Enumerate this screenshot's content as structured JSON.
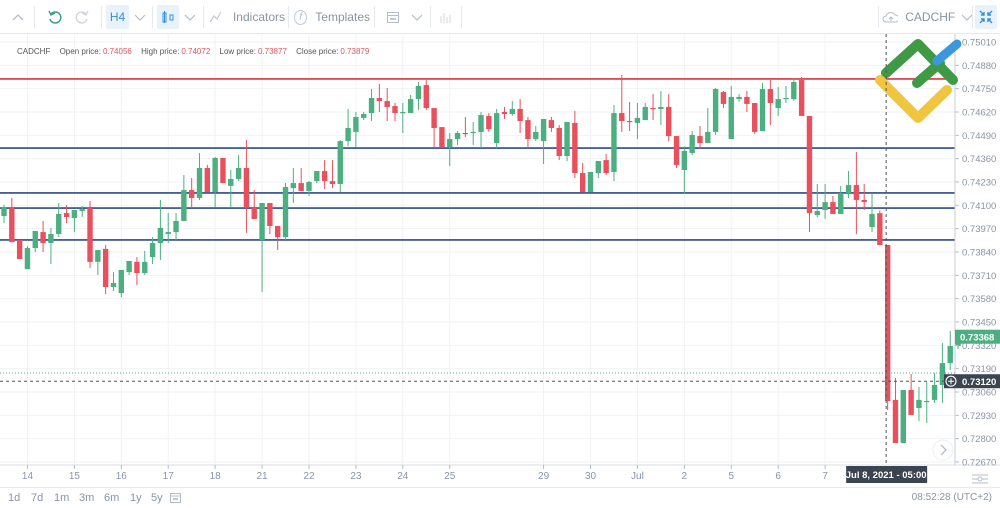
{
  "toolbar": {
    "timeframe": "H4",
    "indicators_label": "Indicators",
    "templates_label": "Templates",
    "symbol": "CADCHF"
  },
  "legend": {
    "symbol": "CADCHF",
    "open_label": "Open price:",
    "open": "0.74056",
    "high_label": "High price:",
    "high": "0.74072",
    "low_label": "Low price:",
    "low": "0.73877",
    "close_label": "Close price:",
    "close": "0.73879"
  },
  "crosshair": {
    "time_label": "Jul 8, 2021 - 05:00",
    "price_label": "0.73120",
    "price": 0.7312,
    "candle_index": 112
  },
  "last_price": {
    "label": "0.73368",
    "price": 0.73368
  },
  "bottom": {
    "ranges": [
      "1d",
      "7d",
      "1m",
      "3m",
      "6m",
      "1y",
      "5y"
    ],
    "clock": "08:52:28 (UTC+2)"
  },
  "colors": {
    "up": "#4caf82",
    "down": "#e8505d",
    "resistance": "#d9343f",
    "support": "#2c4a8c",
    "accent": "#3a8ed8"
  },
  "chart_data": {
    "type": "candlestick",
    "symbol": "CADCHF",
    "timeframe": "H4",
    "ylim": [
      0.7261,
      0.751
    ],
    "y_ticks": [
      "0.75010",
      "0.74880",
      "0.74750",
      "0.74620",
      "0.74490",
      "0.74360",
      "0.74230",
      "0.74100",
      "0.73970",
      "0.73840",
      "0.73710",
      "0.73580",
      "0.73450",
      "0.73320",
      "0.73190",
      "0.73060",
      "0.72930",
      "0.72800",
      "0.72670"
    ],
    "x_ticks": [
      {
        "label": "14",
        "index": 3
      },
      {
        "label": "15",
        "index": 9
      },
      {
        "label": "16",
        "index": 15
      },
      {
        "label": "17",
        "index": 21
      },
      {
        "label": "18",
        "index": 27
      },
      {
        "label": "21",
        "index": 33
      },
      {
        "label": "22",
        "index": 39
      },
      {
        "label": "23",
        "index": 45
      },
      {
        "label": "24",
        "index": 51
      },
      {
        "label": "25",
        "index": 57
      },
      {
        "label": "29",
        "index": 69
      },
      {
        "label": "30",
        "index": 75
      },
      {
        "label": "Jul",
        "index": 81
      },
      {
        "label": "2",
        "index": 87
      },
      {
        "label": "5",
        "index": 93
      },
      {
        "label": "6",
        "index": 99
      },
      {
        "label": "7",
        "index": 105
      }
    ],
    "horizontal_lines": [
      {
        "price": 0.74804,
        "kind": "resistance"
      },
      {
        "price": 0.74419,
        "kind": "support"
      },
      {
        "price": 0.74169,
        "kind": "support"
      },
      {
        "price": 0.74085,
        "kind": "support"
      },
      {
        "price": 0.73907,
        "kind": "support"
      }
    ],
    "dotted_price_line": 0.73166,
    "ohlc": [
      [
        0.7404,
        0.74102,
        0.74001,
        0.74091
      ],
      [
        0.74091,
        0.74141,
        0.73895,
        0.73895
      ],
      [
        0.73907,
        0.73907,
        0.73801,
        0.73801
      ],
      [
        0.73745,
        0.73873,
        0.73745,
        0.73862
      ],
      [
        0.73862,
        0.73957,
        0.7384,
        0.73957
      ],
      [
        0.73951,
        0.74013,
        0.7384,
        0.7389
      ],
      [
        0.7389,
        0.73974,
        0.73773,
        0.7394
      ],
      [
        0.7394,
        0.74113,
        0.73923,
        0.74052
      ],
      [
        0.74057,
        0.74102,
        0.74001,
        0.74035
      ],
      [
        0.74029,
        0.74074,
        0.73951,
        0.74074
      ],
      [
        0.74068,
        0.74096,
        0.74035,
        0.74079
      ],
      [
        0.74085,
        0.74124,
        0.73751,
        0.73785
      ],
      [
        0.73785,
        0.73851,
        0.73712,
        0.73851
      ],
      [
        0.73857,
        0.73879,
        0.73606,
        0.73645
      ],
      [
        0.73645,
        0.73728,
        0.73623,
        0.73667
      ],
      [
        0.73611,
        0.7374,
        0.73589,
        0.7374
      ],
      [
        0.73728,
        0.7379,
        0.73712,
        0.7379
      ],
      [
        0.73785,
        0.73812,
        0.73656,
        0.73723
      ],
      [
        0.73723,
        0.73846,
        0.73712,
        0.73785
      ],
      [
        0.73812,
        0.73923,
        0.73773,
        0.7389
      ],
      [
        0.7389,
        0.7413,
        0.73796,
        0.73974
      ],
      [
        0.7394,
        0.74057,
        0.7389,
        0.73951
      ],
      [
        0.73951,
        0.74057,
        0.73907,
        0.74013
      ],
      [
        0.74013,
        0.74269,
        0.74013,
        0.74185
      ],
      [
        0.74185,
        0.74252,
        0.74091,
        0.74141
      ],
      [
        0.74141,
        0.74391,
        0.7413,
        0.74308
      ],
      [
        0.74308,
        0.74325,
        0.74174,
        0.74174
      ],
      [
        0.74174,
        0.74369,
        0.74091,
        0.74364
      ],
      [
        0.74364,
        0.74364,
        0.74224,
        0.74224
      ],
      [
        0.74208,
        0.74297,
        0.74091,
        0.74247
      ],
      [
        0.74247,
        0.7438,
        0.74235,
        0.74308
      ],
      [
        0.74308,
        0.74464,
        0.73946,
        0.74091
      ],
      [
        0.74085,
        0.74185,
        0.74024,
        0.74024
      ],
      [
        0.73907,
        0.74113,
        0.73617,
        0.74113
      ],
      [
        0.74113,
        0.74113,
        0.7394,
        0.73985
      ],
      [
        0.73985,
        0.73985,
        0.73851,
        0.73923
      ],
      [
        0.73923,
        0.74224,
        0.73907,
        0.74202
      ],
      [
        0.74196,
        0.74308,
        0.74113,
        0.74224
      ],
      [
        0.74224,
        0.74308,
        0.7418,
        0.7418
      ],
      [
        0.7418,
        0.74235,
        0.74152,
        0.7423
      ],
      [
        0.74235,
        0.74291,
        0.74224,
        0.74291
      ],
      [
        0.74291,
        0.74352,
        0.74191,
        0.74235
      ],
      [
        0.74235,
        0.74352,
        0.74196,
        0.74219
      ],
      [
        0.74219,
        0.74464,
        0.74174,
        0.74458
      ],
      [
        0.74458,
        0.74637,
        0.74429,
        0.74531
      ],
      [
        0.74509,
        0.7462,
        0.74425,
        0.74592
      ],
      [
        0.74587,
        0.7462,
        0.74575,
        0.74609
      ],
      [
        0.74614,
        0.74748,
        0.7457,
        0.74698
      ],
      [
        0.74698,
        0.74776,
        0.7462,
        0.74681
      ],
      [
        0.74681,
        0.74754,
        0.7457,
        0.74648
      ],
      [
        0.74653,
        0.7467,
        0.7457,
        0.74614
      ],
      [
        0.74614,
        0.7467,
        0.74503,
        0.7462
      ],
      [
        0.74614,
        0.74715,
        0.74614,
        0.74692
      ],
      [
        0.74692,
        0.74787,
        0.74631,
        0.74765
      ],
      [
        0.7477,
        0.74798,
        0.74631,
        0.74642
      ],
      [
        0.74642,
        0.74642,
        0.74425,
        0.74531
      ],
      [
        0.74536,
        0.74536,
        0.74425,
        0.74425
      ],
      [
        0.74425,
        0.74503,
        0.74319,
        0.74469
      ],
      [
        0.74469,
        0.74514,
        0.74436,
        0.74503
      ],
      [
        0.74503,
        0.74592,
        0.74481,
        0.74497
      ],
      [
        0.74503,
        0.74564,
        0.74436,
        0.74509
      ],
      [
        0.74509,
        0.7462,
        0.74419,
        0.74603
      ],
      [
        0.74598,
        0.74614,
        0.74509,
        0.74525
      ],
      [
        0.74447,
        0.74637,
        0.74419,
        0.74614
      ],
      [
        0.7462,
        0.74648,
        0.74581,
        0.74609
      ],
      [
        0.74609,
        0.74681,
        0.74598,
        0.74637
      ],
      [
        0.74637,
        0.74692,
        0.74503,
        0.7457
      ],
      [
        0.74575,
        0.74592,
        0.74419,
        0.74469
      ],
      [
        0.74469,
        0.74542,
        0.74458,
        0.74509
      ],
      [
        0.74458,
        0.74581,
        0.7433,
        0.74581
      ],
      [
        0.74575,
        0.74592,
        0.74509,
        0.74531
      ],
      [
        0.74531,
        0.74547,
        0.74352,
        0.74375
      ],
      [
        0.74375,
        0.74564,
        0.74347,
        0.74564
      ],
      [
        0.74559,
        0.74626,
        0.74252,
        0.7428
      ],
      [
        0.7428,
        0.74336,
        0.74174,
        0.74174
      ],
      [
        0.74174,
        0.74286,
        0.74174,
        0.74286
      ],
      [
        0.7428,
        0.74347,
        0.74252,
        0.74347
      ],
      [
        0.74352,
        0.74386,
        0.74269,
        0.7428
      ],
      [
        0.74286,
        0.74659,
        0.74235,
        0.74614
      ],
      [
        0.74614,
        0.74826,
        0.74509,
        0.7457
      ],
      [
        0.7457,
        0.74676,
        0.74514,
        0.74564
      ],
      [
        0.74559,
        0.7467,
        0.74469,
        0.74587
      ],
      [
        0.74575,
        0.7467,
        0.74575,
        0.74648
      ],
      [
        0.74642,
        0.7472,
        0.74575,
        0.74637
      ],
      [
        0.74637,
        0.74737,
        0.74547,
        0.74648
      ],
      [
        0.74648,
        0.7472,
        0.74458,
        0.74486
      ],
      [
        0.74486,
        0.74486,
        0.74308,
        0.74325
      ],
      [
        0.74297,
        0.74429,
        0.74163,
        0.74403
      ],
      [
        0.74391,
        0.74514,
        0.7438,
        0.74492
      ],
      [
        0.74486,
        0.74542,
        0.74414,
        0.74447
      ],
      [
        0.74447,
        0.74642,
        0.74447,
        0.74509
      ],
      [
        0.74509,
        0.74754,
        0.74492,
        0.74748
      ],
      [
        0.74731,
        0.74737,
        0.74642,
        0.74665
      ],
      [
        0.74469,
        0.74765,
        0.74469,
        0.74704
      ],
      [
        0.74692,
        0.7472,
        0.74676,
        0.74704
      ],
      [
        0.74704,
        0.74737,
        0.7462,
        0.74665
      ],
      [
        0.7467,
        0.7467,
        0.74497,
        0.74509
      ],
      [
        0.74514,
        0.74782,
        0.74514,
        0.74748
      ],
      [
        0.74748,
        0.74798,
        0.74547,
        0.7467
      ],
      [
        0.74642,
        0.74759,
        0.74598,
        0.74692
      ],
      [
        0.74692,
        0.74765,
        0.7467,
        0.74698
      ],
      [
        0.74692,
        0.74809,
        0.74681,
        0.74787
      ],
      [
        0.74798,
        0.74815,
        0.74598,
        0.74598
      ],
      [
        0.74598,
        0.74598,
        0.73951,
        0.74057
      ],
      [
        0.74046,
        0.74219,
        0.74035,
        0.74068
      ],
      [
        0.74074,
        0.74219,
        0.74024,
        0.74118
      ],
      [
        0.74118,
        0.74152,
        0.74052,
        0.74052
      ],
      [
        0.74052,
        0.74208,
        0.74052,
        0.74168
      ],
      [
        0.74168,
        0.74291,
        0.74141,
        0.74213
      ],
      [
        0.74213,
        0.74397,
        0.7394,
        0.7413
      ],
      [
        0.7413,
        0.74219,
        0.74074,
        0.74118
      ],
      [
        0.73979,
        0.74168,
        0.73951,
        0.74052
      ],
      [
        0.74056,
        0.74072,
        0.73877,
        0.73879
      ],
      [
        0.73879,
        0.73879,
        0.7296,
        0.7301
      ],
      [
        0.73016,
        0.73138,
        0.72776,
        0.72776
      ],
      [
        0.72776,
        0.73071,
        0.72776,
        0.73071
      ],
      [
        0.73071,
        0.7316,
        0.72932,
        0.72932
      ],
      [
        0.72971,
        0.73088,
        0.72898,
        0.73016
      ],
      [
        0.73004,
        0.73116,
        0.72887,
        0.7301
      ],
      [
        0.73016,
        0.73166,
        0.72999,
        0.73099
      ],
      [
        0.73099,
        0.73333,
        0.72999,
        0.73221
      ],
      [
        0.73221,
        0.734,
        0.73182,
        0.73316
      ],
      [
        0.73316,
        0.734,
        0.733,
        0.73368
      ]
    ]
  }
}
